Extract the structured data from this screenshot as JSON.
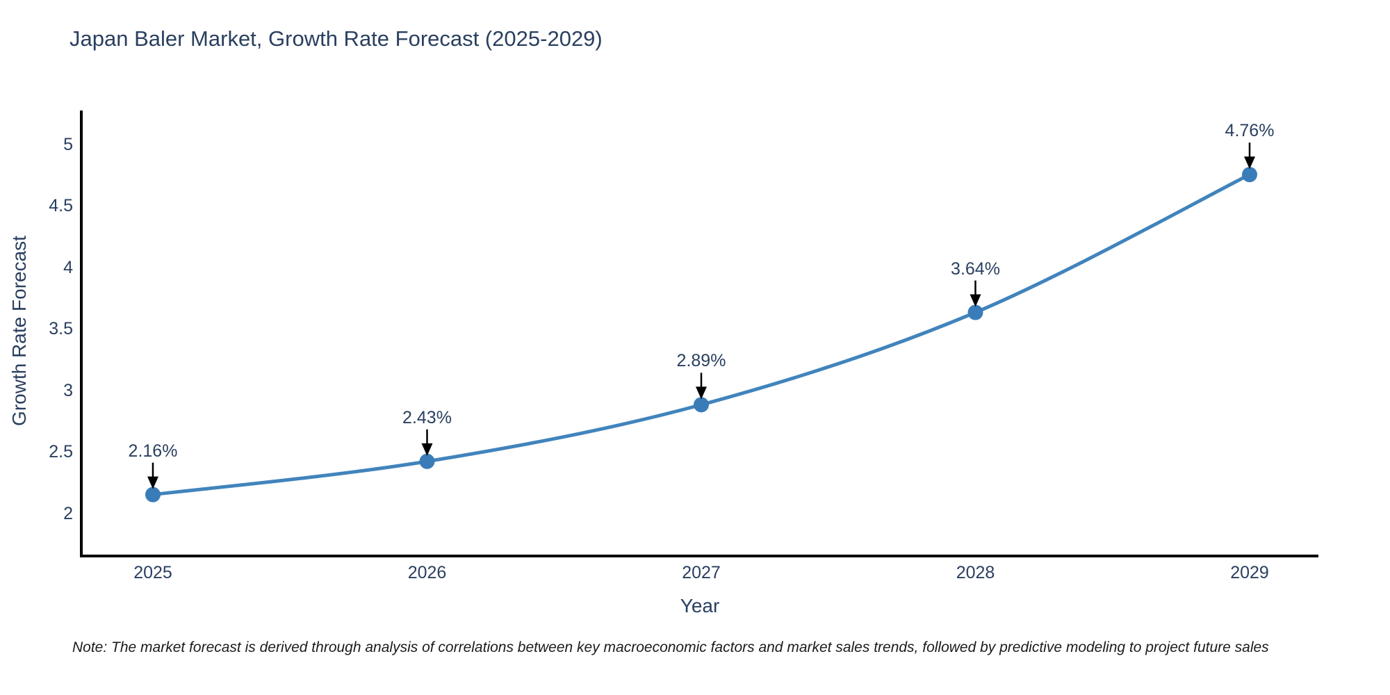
{
  "chart_data": {
    "type": "line",
    "title": "Japan Baler Market, Growth Rate Forecast (2025-2029)",
    "xlabel": "Year",
    "ylabel": "Growth Rate Forecast",
    "x": [
      "2025",
      "2026",
      "2027",
      "2028",
      "2029"
    ],
    "series": [
      {
        "name": "Growth Rate Forecast",
        "values": [
          2.16,
          2.43,
          2.89,
          3.64,
          4.76
        ]
      }
    ],
    "point_labels": [
      "2.16%",
      "2.43%",
      "2.89%",
      "3.64%",
      "4.76%"
    ],
    "ytick_labels": [
      "2",
      "2.5",
      "3",
      "3.5",
      "4",
      "4.5",
      "5"
    ],
    "ytick_values": [
      2,
      2.5,
      3,
      3.5,
      4,
      4.5,
      5
    ],
    "ylim": [
      1.66,
      5.28
    ],
    "grid": false,
    "legend": "none",
    "line_color": "#4184bc",
    "marker_color": "#3a7cb8",
    "annotation_arrow_color": "#000000",
    "axis_color": "#000000",
    "text_color": "#2a3f5f",
    "background_color": "#ffffff"
  },
  "note": {
    "text": "Note: The market forecast is derived through analysis of correlations between key macroeconomic factors and market sales trends, followed by predictive modeling to project future sales"
  }
}
